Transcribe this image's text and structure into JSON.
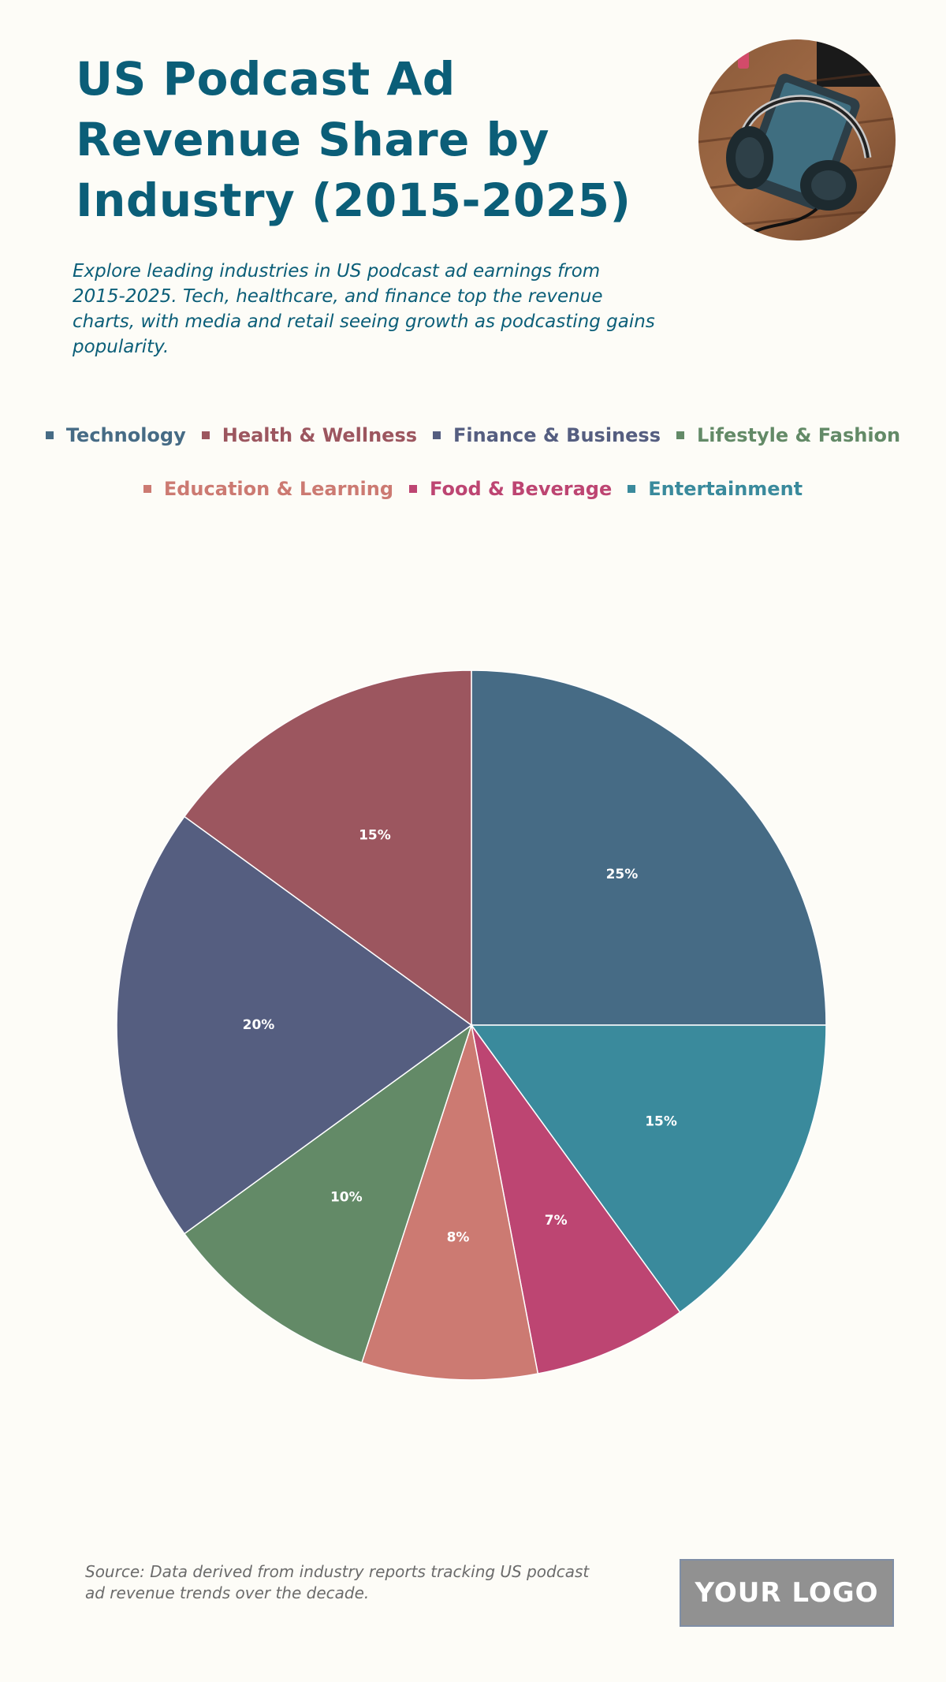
{
  "header": {
    "title": "US Podcast Ad Revenue Share by Industry (2015-2025)",
    "subtitle": "Explore leading industries in US podcast ad earnings from 2015-2025. Tech, healthcare, and finance top the revenue charts, with media and retail seeing growth as podcasting gains popularity."
  },
  "photo": {
    "icon": "headphones-photo"
  },
  "chart_data": {
    "type": "pie",
    "title": "US Podcast Ad Revenue Share by Industry (2015-2025)",
    "legend_position": "top",
    "start_angle_deg": 0,
    "direction": "clockwise",
    "slices": [
      {
        "name": "Technology",
        "value": 25,
        "label": "25%",
        "color": "#466b85"
      },
      {
        "name": "Entertainment",
        "value": 15,
        "label": "15%",
        "color": "#3a8a9c"
      },
      {
        "name": "Food & Beverage",
        "value": 7,
        "label": "7%",
        "color": "#bd4572"
      },
      {
        "name": "Education & Learning",
        "value": 8,
        "label": "8%",
        "color": "#cc7a72"
      },
      {
        "name": "Lifestyle & Fashion",
        "value": 10,
        "label": "10%",
        "color": "#638a67"
      },
      {
        "name": "Finance & Business",
        "value": 20,
        "label": "20%",
        "color": "#555e80"
      },
      {
        "name": "Health & Wellness",
        "value": 15,
        "label": "15%",
        "color": "#9c565f"
      }
    ],
    "legend": [
      {
        "name": "Technology",
        "color": "#466b85"
      },
      {
        "name": "Health & Wellness",
        "color": "#9c565f"
      },
      {
        "name": "Finance & Business",
        "color": "#555e80"
      },
      {
        "name": "Lifestyle & Fashion",
        "color": "#638a67"
      },
      {
        "name": "Education & Learning",
        "color": "#cc7a72"
      },
      {
        "name": "Food & Beverage",
        "color": "#bd4572"
      },
      {
        "name": "Entertainment",
        "color": "#3a8a9c"
      }
    ]
  },
  "footer": {
    "source": "Source: Data derived from industry reports tracking US podcast ad revenue trends over the decade.",
    "logo_text": "YOUR LOGO"
  }
}
